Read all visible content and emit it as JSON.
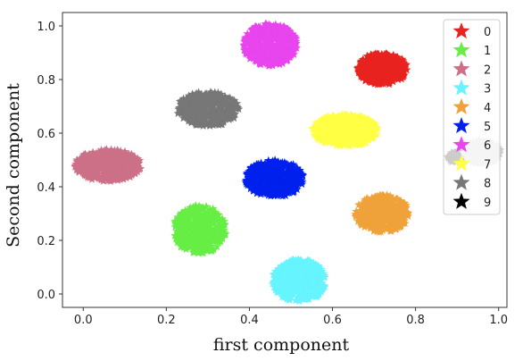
{
  "chart_data": {
    "type": "scatter",
    "title": "",
    "xlabel": "first component",
    "ylabel": "Second component",
    "xlim": [
      -0.05,
      1.02
    ],
    "ylim": [
      -0.05,
      1.05
    ],
    "xticks": [
      "0.0",
      "0.2",
      "0.4",
      "0.6",
      "0.8",
      "1.0"
    ],
    "yticks": [
      "0.0",
      "0.2",
      "0.4",
      "0.6",
      "0.8",
      "1.0"
    ],
    "grid": false,
    "legend_position": "top-right",
    "marker": "star",
    "series": [
      {
        "name": "0",
        "color": "#e8231f",
        "center": [
          0.72,
          0.84
        ],
        "spread": [
          0.06,
          0.06
        ]
      },
      {
        "name": "1",
        "color": "#66ee44",
        "center": [
          0.28,
          0.24
        ],
        "spread": [
          0.065,
          0.09
        ]
      },
      {
        "name": "2",
        "color": "#cc7088",
        "center": [
          0.06,
          0.48
        ],
        "spread": [
          0.08,
          0.06
        ]
      },
      {
        "name": "3",
        "color": "#66f4ff",
        "center": [
          0.52,
          0.05
        ],
        "spread": [
          0.065,
          0.08
        ]
      },
      {
        "name": "4",
        "color": "#f0a23a",
        "center": [
          0.72,
          0.3
        ],
        "spread": [
          0.065,
          0.07
        ]
      },
      {
        "name": "5",
        "color": "#0020ee",
        "center": [
          0.46,
          0.43
        ],
        "spread": [
          0.07,
          0.07
        ]
      },
      {
        "name": "6",
        "color": "#e845ee",
        "center": [
          0.45,
          0.93
        ],
        "spread": [
          0.065,
          0.08
        ]
      },
      {
        "name": "7",
        "color": "#ffff44",
        "center": [
          0.63,
          0.61
        ],
        "spread": [
          0.08,
          0.06
        ]
      },
      {
        "name": "8",
        "color": "#777777",
        "center": [
          0.3,
          0.69
        ],
        "spread": [
          0.075,
          0.065
        ]
      },
      {
        "name": "9",
        "color": "#000000",
        "center": [
          0.9,
          0.51
        ],
        "spread": [
          0.025,
          0.02
        ]
      }
    ],
    "overlay": {
      "name": "6",
      "color": "#cccccc",
      "center": [
        0.96,
        0.53
      ],
      "spread": [
        0.045,
        0.045
      ]
    }
  }
}
